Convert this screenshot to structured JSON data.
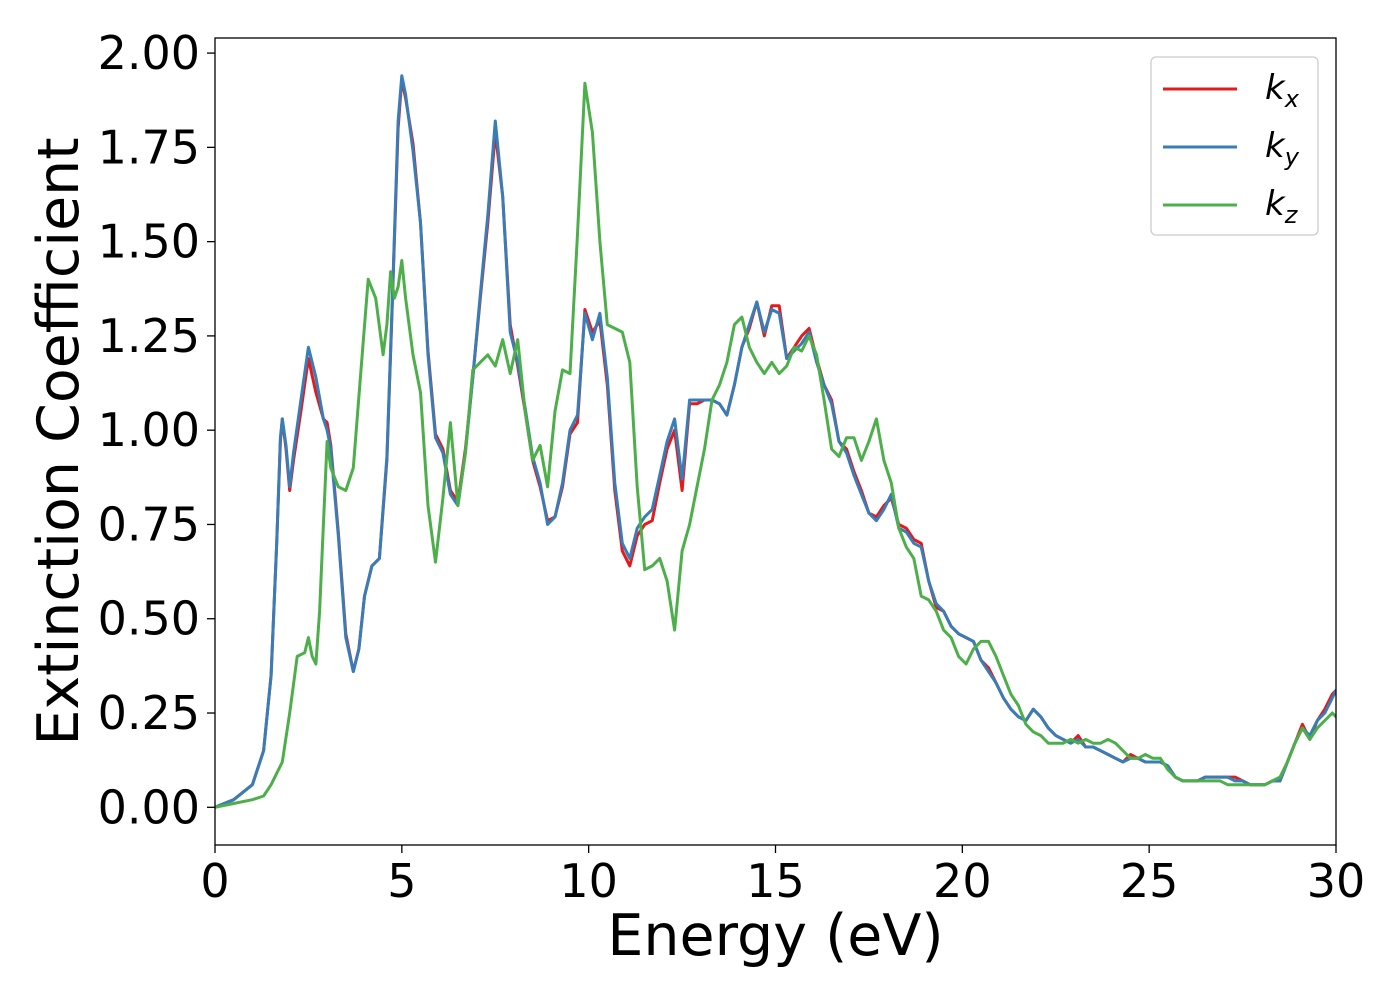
{
  "chart_data": {
    "type": "line",
    "title": "",
    "xlabel": "Energy (eV)",
    "ylabel": "Extinction Coefficient",
    "xlim": [
      0,
      30
    ],
    "ylim": [
      -0.1,
      2.04
    ],
    "xticks": [
      0,
      5,
      10,
      15,
      20,
      25,
      30
    ],
    "yticks": [
      0.0,
      0.25,
      0.5,
      0.75,
      1.0,
      1.25,
      1.5,
      1.75,
      2.0
    ],
    "xtick_labels": [
      "0",
      "5",
      "10",
      "15",
      "20",
      "25",
      "30"
    ],
    "ytick_labels": [
      "0.00",
      "0.25",
      "0.50",
      "0.75",
      "1.00",
      "1.25",
      "1.50",
      "1.75",
      "2.00"
    ],
    "grid": false,
    "legend_position": "top-right",
    "series": [
      {
        "name": "k",
        "subscript": "x",
        "color": "#e41a1c",
        "x": [
          0,
          0.5,
          1.0,
          1.3,
          1.5,
          1.65,
          1.75,
          1.8,
          1.9,
          2.0,
          2.1,
          2.3,
          2.5,
          2.7,
          2.9,
          3.0,
          3.1,
          3.3,
          3.5,
          3.7,
          3.85,
          4.0,
          4.2,
          4.4,
          4.6,
          4.75,
          4.9,
          5.0,
          5.1,
          5.3,
          5.5,
          5.7,
          5.9,
          6.1,
          6.3,
          6.5,
          6.7,
          6.9,
          7.1,
          7.3,
          7.5,
          7.7,
          7.9,
          8.1,
          8.3,
          8.5,
          8.7,
          8.9,
          9.1,
          9.3,
          9.5,
          9.7,
          9.9,
          10.1,
          10.3,
          10.5,
          10.7,
          10.9,
          11.1,
          11.3,
          11.5,
          11.7,
          11.9,
          12.1,
          12.3,
          12.5,
          12.7,
          12.9,
          13.1,
          13.3,
          13.5,
          13.7,
          13.9,
          14.1,
          14.3,
          14.5,
          14.7,
          14.9,
          15.1,
          15.3,
          15.5,
          15.7,
          15.9,
          16.1,
          16.3,
          16.5,
          16.7,
          16.9,
          17.1,
          17.3,
          17.5,
          17.7,
          17.9,
          18.1,
          18.3,
          18.5,
          18.7,
          18.9,
          19.1,
          19.3,
          19.5,
          19.7,
          19.9,
          20.1,
          20.3,
          20.5,
          20.7,
          20.9,
          21.1,
          21.3,
          21.5,
          21.7,
          21.9,
          22.1,
          22.3,
          22.5,
          22.7,
          22.9,
          23.1,
          23.3,
          23.5,
          23.7,
          23.9,
          24.1,
          24.3,
          24.5,
          24.7,
          24.9,
          25.1,
          25.3,
          25.5,
          25.7,
          25.9,
          26.1,
          26.3,
          26.5,
          26.7,
          26.9,
          27.1,
          27.3,
          27.5,
          27.7,
          27.9,
          28.1,
          28.3,
          28.5,
          28.7,
          28.9,
          29.1,
          29.3,
          29.5,
          29.7,
          29.9,
          30.0
        ],
        "y": [
          0,
          0.02,
          0.06,
          0.15,
          0.35,
          0.7,
          0.97,
          1.03,
          0.95,
          0.84,
          0.92,
          1.05,
          1.19,
          1.1,
          1.03,
          1.02,
          0.96,
          0.73,
          0.46,
          0.36,
          0.42,
          0.56,
          0.64,
          0.66,
          0.92,
          1.35,
          1.8,
          1.93,
          1.88,
          1.76,
          1.55,
          1.21,
          0.99,
          0.95,
          0.84,
          0.81,
          0.95,
          1.14,
          1.35,
          1.55,
          1.79,
          1.62,
          1.28,
          1.17,
          1.05,
          0.92,
          0.85,
          0.76,
          0.77,
          0.85,
          0.99,
          1.02,
          1.32,
          1.26,
          1.29,
          1.12,
          0.84,
          0.68,
          0.64,
          0.72,
          0.75,
          0.76,
          0.86,
          0.95,
          1.0,
          0.84,
          1.07,
          1.07,
          1.08,
          1.08,
          1.07,
          1.04,
          1.12,
          1.22,
          1.27,
          1.34,
          1.25,
          1.33,
          1.33,
          1.19,
          1.22,
          1.25,
          1.27,
          1.19,
          1.12,
          1.08,
          0.97,
          0.95,
          0.89,
          0.84,
          0.78,
          0.77,
          0.8,
          0.82,
          0.75,
          0.74,
          0.71,
          0.7,
          0.6,
          0.53,
          0.52,
          0.48,
          0.46,
          0.45,
          0.44,
          0.39,
          0.37,
          0.33,
          0.29,
          0.26,
          0.24,
          0.23,
          0.26,
          0.24,
          0.21,
          0.19,
          0.18,
          0.17,
          0.19,
          0.16,
          0.16,
          0.15,
          0.14,
          0.13,
          0.12,
          0.14,
          0.13,
          0.12,
          0.12,
          0.12,
          0.11,
          0.08,
          0.07,
          0.07,
          0.07,
          0.08,
          0.08,
          0.08,
          0.08,
          0.08,
          0.07,
          0.06,
          0.06,
          0.06,
          0.07,
          0.07,
          0.12,
          0.17,
          0.22,
          0.18,
          0.23,
          0.26,
          0.3,
          0.31
        ]
      },
      {
        "name": "k",
        "subscript": "y",
        "color": "#377eb8",
        "x": [
          0,
          0.5,
          1.0,
          1.3,
          1.5,
          1.65,
          1.75,
          1.8,
          1.9,
          2.0,
          2.1,
          2.3,
          2.5,
          2.7,
          2.9,
          3.0,
          3.1,
          3.3,
          3.5,
          3.7,
          3.85,
          4.0,
          4.2,
          4.4,
          4.6,
          4.75,
          4.9,
          5.0,
          5.1,
          5.3,
          5.5,
          5.7,
          5.9,
          6.1,
          6.3,
          6.5,
          6.7,
          6.9,
          7.1,
          7.3,
          7.5,
          7.7,
          7.9,
          8.1,
          8.3,
          8.5,
          8.7,
          8.9,
          9.1,
          9.3,
          9.5,
          9.7,
          9.9,
          10.1,
          10.3,
          10.5,
          10.7,
          10.9,
          11.1,
          11.3,
          11.5,
          11.7,
          11.9,
          12.1,
          12.3,
          12.5,
          12.7,
          12.9,
          13.1,
          13.3,
          13.5,
          13.7,
          13.9,
          14.1,
          14.3,
          14.5,
          14.7,
          14.9,
          15.1,
          15.3,
          15.5,
          15.7,
          15.9,
          16.1,
          16.3,
          16.5,
          16.7,
          16.9,
          17.1,
          17.3,
          17.5,
          17.7,
          17.9,
          18.1,
          18.3,
          18.5,
          18.7,
          18.9,
          19.1,
          19.3,
          19.5,
          19.7,
          19.9,
          20.1,
          20.3,
          20.5,
          20.7,
          20.9,
          21.1,
          21.3,
          21.5,
          21.7,
          21.9,
          22.1,
          22.3,
          22.5,
          22.7,
          22.9,
          23.1,
          23.3,
          23.5,
          23.7,
          23.9,
          24.1,
          24.3,
          24.5,
          24.7,
          24.9,
          25.1,
          25.3,
          25.5,
          25.7,
          25.9,
          26.1,
          26.3,
          26.5,
          26.7,
          26.9,
          27.1,
          27.3,
          27.5,
          27.7,
          27.9,
          28.1,
          28.3,
          28.5,
          28.7,
          28.9,
          29.1,
          29.3,
          29.5,
          29.7,
          29.9,
          30.0
        ],
        "y": [
          0,
          0.02,
          0.06,
          0.15,
          0.35,
          0.7,
          0.98,
          1.03,
          0.96,
          0.85,
          0.94,
          1.08,
          1.22,
          1.14,
          1.03,
          1.0,
          0.95,
          0.72,
          0.45,
          0.36,
          0.42,
          0.56,
          0.64,
          0.66,
          0.93,
          1.36,
          1.82,
          1.94,
          1.89,
          1.74,
          1.55,
          1.2,
          0.98,
          0.94,
          0.83,
          0.8,
          0.94,
          1.14,
          1.36,
          1.57,
          1.82,
          1.62,
          1.26,
          1.18,
          1.06,
          0.93,
          0.86,
          0.75,
          0.77,
          0.86,
          1.0,
          1.04,
          1.31,
          1.24,
          1.31,
          1.14,
          0.86,
          0.7,
          0.66,
          0.74,
          0.77,
          0.79,
          0.88,
          0.97,
          1.03,
          0.87,
          1.08,
          1.08,
          1.08,
          1.08,
          1.07,
          1.04,
          1.12,
          1.22,
          1.28,
          1.34,
          1.26,
          1.32,
          1.31,
          1.19,
          1.21,
          1.23,
          1.26,
          1.18,
          1.12,
          1.07,
          0.97,
          0.94,
          0.88,
          0.83,
          0.78,
          0.76,
          0.79,
          0.83,
          0.74,
          0.73,
          0.7,
          0.69,
          0.6,
          0.54,
          0.52,
          0.48,
          0.46,
          0.45,
          0.44,
          0.39,
          0.36,
          0.33,
          0.29,
          0.26,
          0.24,
          0.23,
          0.26,
          0.24,
          0.21,
          0.19,
          0.18,
          0.17,
          0.18,
          0.16,
          0.16,
          0.15,
          0.14,
          0.13,
          0.12,
          0.13,
          0.13,
          0.12,
          0.12,
          0.12,
          0.11,
          0.08,
          0.07,
          0.07,
          0.07,
          0.08,
          0.08,
          0.08,
          0.08,
          0.07,
          0.07,
          0.06,
          0.06,
          0.06,
          0.07,
          0.07,
          0.12,
          0.17,
          0.21,
          0.19,
          0.23,
          0.25,
          0.29,
          0.31
        ]
      },
      {
        "name": "k",
        "subscript": "z",
        "color": "#4daf4a",
        "x": [
          0,
          0.5,
          1.0,
          1.3,
          1.5,
          1.8,
          2.0,
          2.2,
          2.4,
          2.5,
          2.6,
          2.7,
          2.8,
          2.9,
          3.0,
          3.1,
          3.3,
          3.5,
          3.7,
          3.9,
          4.1,
          4.3,
          4.5,
          4.6,
          4.7,
          4.8,
          4.9,
          5.0,
          5.1,
          5.3,
          5.5,
          5.7,
          5.9,
          6.1,
          6.3,
          6.5,
          6.7,
          6.9,
          7.1,
          7.3,
          7.5,
          7.7,
          7.9,
          8.1,
          8.3,
          8.5,
          8.7,
          8.9,
          9.1,
          9.3,
          9.5,
          9.7,
          9.9,
          10.1,
          10.3,
          10.5,
          10.7,
          10.9,
          11.1,
          11.3,
          11.5,
          11.7,
          11.9,
          12.1,
          12.3,
          12.5,
          12.7,
          12.9,
          13.1,
          13.3,
          13.5,
          13.7,
          13.9,
          14.1,
          14.3,
          14.5,
          14.7,
          14.9,
          15.1,
          15.3,
          15.5,
          15.7,
          15.9,
          16.1,
          16.3,
          16.5,
          16.7,
          16.9,
          17.1,
          17.3,
          17.5,
          17.7,
          17.9,
          18.1,
          18.3,
          18.5,
          18.7,
          18.9,
          19.1,
          19.3,
          19.5,
          19.7,
          19.9,
          20.1,
          20.3,
          20.5,
          20.7,
          20.9,
          21.1,
          21.3,
          21.5,
          21.7,
          21.9,
          22.1,
          22.3,
          22.5,
          22.7,
          22.9,
          23.1,
          23.3,
          23.5,
          23.7,
          23.9,
          24.1,
          24.3,
          24.5,
          24.7,
          24.9,
          25.1,
          25.3,
          25.5,
          25.7,
          25.9,
          26.1,
          26.3,
          26.5,
          26.7,
          26.9,
          27.1,
          27.3,
          27.5,
          27.7,
          27.9,
          28.1,
          28.3,
          28.5,
          28.7,
          28.9,
          29.1,
          29.3,
          29.5,
          29.7,
          29.9,
          30.0
        ],
        "y": [
          0,
          0.01,
          0.02,
          0.03,
          0.06,
          0.12,
          0.25,
          0.4,
          0.41,
          0.45,
          0.4,
          0.38,
          0.52,
          0.75,
          0.97,
          0.9,
          0.85,
          0.84,
          0.9,
          1.15,
          1.4,
          1.35,
          1.2,
          1.28,
          1.42,
          1.35,
          1.38,
          1.45,
          1.35,
          1.2,
          1.1,
          0.8,
          0.65,
          0.82,
          1.02,
          0.8,
          0.94,
          1.16,
          1.18,
          1.2,
          1.17,
          1.24,
          1.15,
          1.24,
          1.05,
          0.92,
          0.96,
          0.85,
          1.05,
          1.16,
          1.15,
          1.52,
          1.92,
          1.79,
          1.5,
          1.28,
          1.27,
          1.26,
          1.18,
          0.85,
          0.63,
          0.64,
          0.66,
          0.6,
          0.47,
          0.68,
          0.75,
          0.85,
          0.95,
          1.08,
          1.12,
          1.18,
          1.28,
          1.3,
          1.22,
          1.18,
          1.15,
          1.18,
          1.15,
          1.17,
          1.22,
          1.21,
          1.25,
          1.2,
          1.08,
          0.95,
          0.93,
          0.98,
          0.98,
          0.92,
          0.97,
          1.03,
          0.92,
          0.86,
          0.74,
          0.69,
          0.66,
          0.56,
          0.55,
          0.52,
          0.47,
          0.45,
          0.4,
          0.38,
          0.42,
          0.44,
          0.44,
          0.4,
          0.35,
          0.3,
          0.27,
          0.22,
          0.2,
          0.19,
          0.17,
          0.17,
          0.17,
          0.18,
          0.17,
          0.18,
          0.17,
          0.17,
          0.18,
          0.17,
          0.15,
          0.13,
          0.13,
          0.14,
          0.13,
          0.13,
          0.1,
          0.08,
          0.07,
          0.07,
          0.07,
          0.07,
          0.07,
          0.07,
          0.06,
          0.06,
          0.06,
          0.06,
          0.06,
          0.06,
          0.07,
          0.08,
          0.12,
          0.17,
          0.21,
          0.18,
          0.21,
          0.23,
          0.25,
          0.24
        ]
      }
    ]
  }
}
